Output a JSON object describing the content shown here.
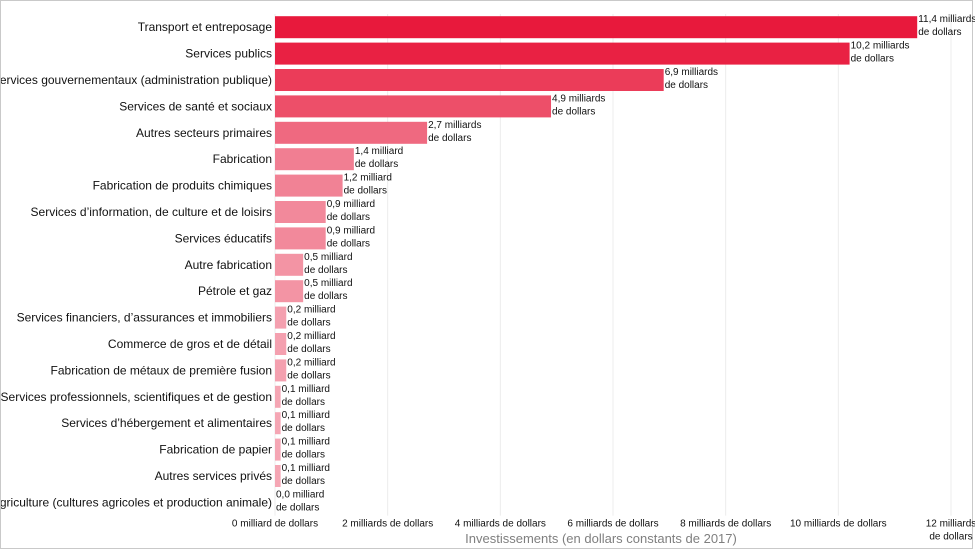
{
  "chart_data": {
    "type": "bar",
    "orientation": "horizontal",
    "xlabel": "Investissements (en dollars constants de 2017)",
    "xlim": [
      0,
      12
    ],
    "grid": true,
    "categories": [
      "Transport et entreposage",
      "Services publics",
      "Services gouvernementaux (administration publique)",
      "Services de santé et sociaux",
      "Autres secteurs primaires",
      "Fabrication",
      "Fabrication de produits chimiques",
      "Services d’information, de culture et de loisirs",
      "Services éducatifs",
      "Autre fabrication",
      "Pétrole et gaz",
      "Services financiers, d’assurances et immobiliers",
      "Commerce de gros et de détail",
      "Fabrication de métaux de première fusion",
      "Services professionnels, scientifiques et de gestion",
      "Services d’hébergement et alimentaires",
      "Fabrication de papier",
      "Autres services privés",
      "Agriculture (cultures agricoles et production animale)"
    ],
    "values": [
      11.4,
      10.2,
      6.9,
      4.9,
      2.7,
      1.4,
      1.2,
      0.9,
      0.9,
      0.5,
      0.5,
      0.2,
      0.2,
      0.2,
      0.1,
      0.1,
      0.1,
      0.1,
      0.0
    ],
    "value_labels": [
      [
        "11,4 milliards",
        "de dollars"
      ],
      [
        "10,2 milliards",
        "de dollars"
      ],
      [
        "6,9 milliards",
        "de dollars"
      ],
      [
        "4,9 milliards",
        "de dollars"
      ],
      [
        "2,7 milliards",
        "de dollars"
      ],
      [
        "1,4 milliard",
        "de dollars"
      ],
      [
        "1,2 milliard",
        "de dollars"
      ],
      [
        "0,9 milliard",
        "de dollars"
      ],
      [
        "0,9 milliard",
        "de dollars"
      ],
      [
        "0,5 milliard",
        "de dollars"
      ],
      [
        "0,5 milliard",
        "de dollars"
      ],
      [
        "0,2 milliard",
        "de dollars"
      ],
      [
        "0,2 milliard",
        "de dollars"
      ],
      [
        "0,2 milliard",
        "de dollars"
      ],
      [
        "0,1 milliard",
        "de dollars"
      ],
      [
        "0,1 milliard",
        "de dollars"
      ],
      [
        "0,1 milliard",
        "de dollars"
      ],
      [
        "0,1 milliard",
        "de dollars"
      ],
      [
        "0,0 milliard",
        "de dollars"
      ]
    ],
    "ticks": [
      {
        "value": 0,
        "lines": [
          "0 milliard de dollars"
        ]
      },
      {
        "value": 2,
        "lines": [
          "2 milliards de dollars"
        ]
      },
      {
        "value": 4,
        "lines": [
          "4 milliards de dollars"
        ]
      },
      {
        "value": 6,
        "lines": [
          "6 milliards de dollars"
        ]
      },
      {
        "value": 8,
        "lines": [
          "8 milliards de dollars"
        ]
      },
      {
        "value": 10,
        "lines": [
          "10 milliards de dollars"
        ]
      },
      {
        "value": 12,
        "lines": [
          "12 milliards",
          "de dollars"
        ]
      }
    ],
    "colors": {
      "max": "#e8193c",
      "min": "#f6b5c0",
      "grid": "#ececec"
    }
  }
}
